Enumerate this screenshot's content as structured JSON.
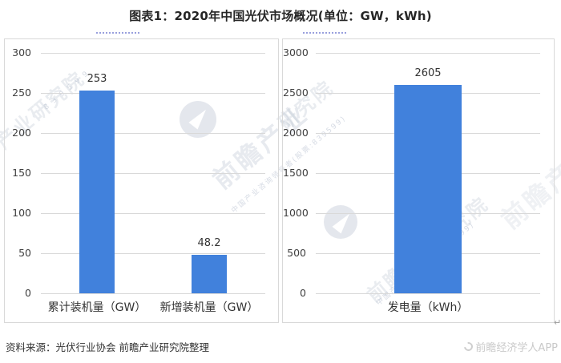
{
  "title": "图表1：2020年中国光伏市场概况(单位：GW，kWh)",
  "source_note": "资料来源：光伏行业协会 前瞻产业研究院整理",
  "footer_brand": "前瞻经济学人APP",
  "return_mark": "↵",
  "colors": {
    "bar": "#4181DC",
    "grid": "#d9d9d9",
    "panel_border": "#d9d9d9",
    "tick_text": "#404040",
    "watermark": "#aeb9ca",
    "dotted_underline": "#8890d8",
    "footer_brand_text": "#c9c9c9"
  },
  "watermarks": {
    "corner_left": "产业研究院",
    "corner_left_digits": "8 3 9 5 9 9",
    "center_left": "前瞻产业",
    "center_left_sub": "中国产业咨询领导者(股票:839599)",
    "corner_right": "研究院",
    "center_right": "前瞻产业研究院",
    "center_right_sub": "中国产业咨询领导者(839599)",
    "edge_right": "前瞻产业"
  },
  "chart_data": [
    {
      "type": "bar",
      "title": "",
      "categories": [
        "累计装机量（GW）",
        "新增装机量（GW）"
      ],
      "values": [
        253,
        48.2
      ],
      "data_labels": [
        "253",
        "48.2"
      ],
      "xlabel": "",
      "ylabel": "",
      "ylim": [
        0,
        300
      ],
      "yticks": [
        300,
        250,
        200,
        150,
        100,
        50,
        0
      ],
      "grid": true,
      "legend": false,
      "bar_color": "#4181DC",
      "bar_width_frac": 0.315
    },
    {
      "type": "bar",
      "title": "",
      "categories": [
        "发电量（kWh）"
      ],
      "values": [
        2605
      ],
      "data_labels": [
        "2605"
      ],
      "xlabel": "",
      "ylabel": "",
      "ylim": [
        0,
        3000
      ],
      "yticks": [
        3000,
        2500,
        2000,
        1500,
        1000,
        500,
        0
      ],
      "grid": true,
      "legend": false,
      "bar_color": "#4181DC",
      "bar_width_frac": 0.3
    }
  ]
}
